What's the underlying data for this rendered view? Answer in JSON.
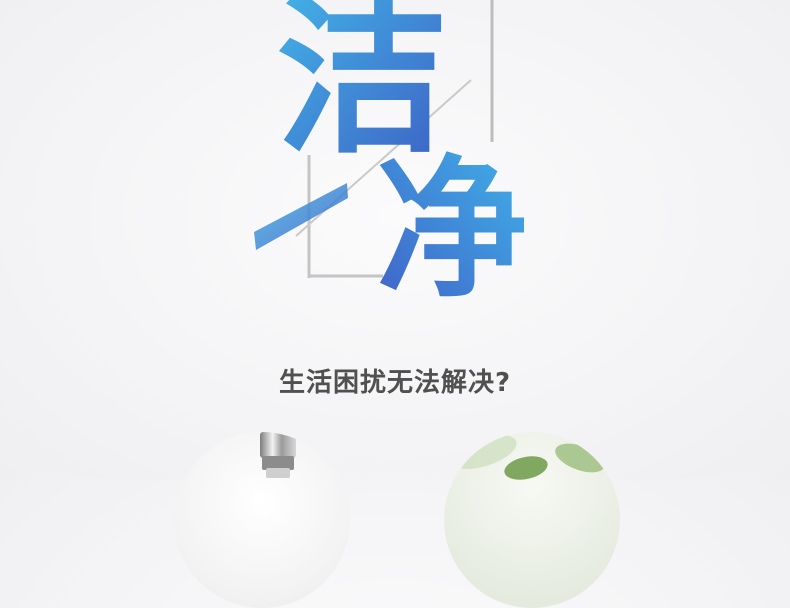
{
  "hero": {
    "char_top": "洁",
    "char_bottom": "净"
  },
  "subtitle": "生活困扰无法解决?",
  "colors": {
    "blue_light": "#43b6e8",
    "blue_dark": "#3d5fc4",
    "frame_line": "#bdbdbd",
    "subtitle_text": "#505050"
  },
  "images": [
    {
      "name": "faucet-photo"
    },
    {
      "name": "plant-photo"
    }
  ]
}
